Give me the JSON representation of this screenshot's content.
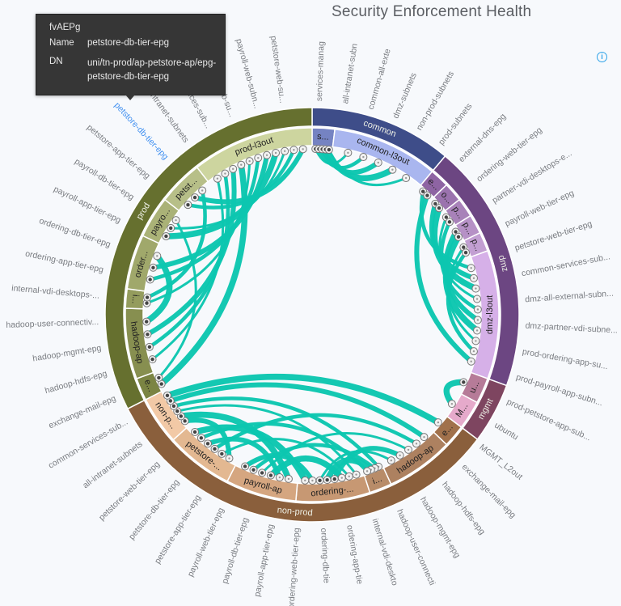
{
  "title": "Security Enforcement Health",
  "info_icon": "info-circle-icon",
  "tooltip": {
    "type": "fvAEPg",
    "name_label": "Name",
    "name_value": "petstore-db-tier-epg",
    "dn_label": "DN",
    "dn_value": "uni/tn-prod/ap-petstore-ap/epg-petstore-db-tier-epg"
  },
  "colors": {
    "chord": "#0cc6b0",
    "label": "#7a7d82",
    "highlight": "#3f8ff0"
  },
  "chart_data": {
    "type": "chord",
    "groups": [
      {
        "name": "common",
        "size": 40,
        "color": "#3e4d89"
      },
      {
        "name": "dmz",
        "size": 70,
        "color": "#6c4682"
      },
      {
        "name": "mgmt",
        "size": 17,
        "color": "#7e4560"
      },
      {
        "name": "non-prod",
        "size": 116,
        "color": "#8a5f3c"
      },
      {
        "name": "prod",
        "size": 117,
        "color": "#66702f"
      }
    ],
    "segments": [
      {
        "id": "c-s",
        "label": "s...",
        "size": 7,
        "color": "#7583c2"
      },
      {
        "id": "c-l3",
        "label": "common-l3out",
        "size": 33,
        "color": "#a9b6ef"
      },
      {
        "id": "d-e",
        "label": "e...",
        "size": 6,
        "color": "#8e64a3"
      },
      {
        "id": "d-o",
        "label": "o...",
        "size": 6,
        "color": "#9b73ae"
      },
      {
        "id": "d-p1",
        "label": "p...",
        "size": 6,
        "color": "#a882b9"
      },
      {
        "id": "d-p2",
        "label": "p...",
        "size": 6,
        "color": "#b691c6"
      },
      {
        "id": "d-p3",
        "label": "p...",
        "size": 6,
        "color": "#c29fd2"
      },
      {
        "id": "d-l3",
        "label": "dmz-l3out",
        "size": 40,
        "color": "#d6b0e8"
      },
      {
        "id": "m-u",
        "label": "u...",
        "size": 8,
        "color": "#b67b98"
      },
      {
        "id": "m-M",
        "label": "M...",
        "size": 9,
        "color": "#e6aacb"
      },
      {
        "id": "n-e",
        "label": "e...",
        "size": 7,
        "color": "#a1714b"
      },
      {
        "id": "n-h",
        "label": "hadoop-ap",
        "size": 21,
        "color": "#ad8160"
      },
      {
        "id": "n-i",
        "label": "i...",
        "size": 7,
        "color": "#b88c69"
      },
      {
        "id": "n-o",
        "label": "ordering-...",
        "size": 23,
        "color": "#c79873"
      },
      {
        "id": "n-pa",
        "label": "payroll-ap",
        "size": 22,
        "color": "#d5a680"
      },
      {
        "id": "n-pe",
        "label": "petstore-...",
        "size": 21,
        "color": "#e3b891"
      },
      {
        "id": "n-np",
        "label": "non-p...",
        "size": 15,
        "color": "#f2c9a6"
      },
      {
        "id": "p-e",
        "label": "e...",
        "size": 7,
        "color": "#7b8443"
      },
      {
        "id": "p-h",
        "label": "hadoop-ap",
        "size": 22,
        "color": "#878f50"
      },
      {
        "id": "p-i",
        "label": "i...",
        "size": 6,
        "color": "#949c5d"
      },
      {
        "id": "p-o",
        "label": "order...",
        "size": 17,
        "color": "#a0a86b"
      },
      {
        "id": "p-pa",
        "label": "payro...",
        "size": 13,
        "color": "#aab277"
      },
      {
        "id": "p-pe",
        "label": "petst...",
        "size": 14,
        "color": "#b7bf88"
      },
      {
        "id": "p-l3",
        "label": "prod-l3out",
        "size": 38,
        "color": "#cdd59f"
      }
    ],
    "labels": [
      "services-manag",
      "all-intranet-subn",
      "common-all-exte",
      "dmz-subnets",
      "non-prod-subnets",
      "prod-subnets",
      "external-dns-epg",
      "ordering-web-tier-epg",
      "partner-vdi-desktops-e...",
      "payroll-web-tier-epg",
      "petstore-web-tier-epg",
      "common-services-sub...",
      "dmz-all-external-subn...",
      "dmz-partner-vdi-subne...",
      "prod-ordering-app-su...",
      "prod-payroll-app-subn...",
      "prod-petstore-app-sub...",
      "ubuntu",
      "MGMT_L2out",
      "exchange-mail-epg",
      "hadoop-hdfs-epg",
      "hadoop-mgmt-epg",
      "hadoop-user-connecti",
      "internal-vdi-deskto",
      "ordering-app-tie",
      "ordering-db-tie",
      "ordering-web-tier-epg",
      "payroll-app-tier-epg",
      "payroll-db-tier-epg",
      "payroll-web-tier-epg",
      "petstore-app-tier-epg",
      "petstore-db-tier-epg",
      "petstore-web-tier-epg",
      "all-intranet-subnets",
      "common-services-sub...",
      "exchange-mail-epg",
      "hadoop-hdfs-epg",
      "hadoop-mgmt-epg",
      "hadoop-user-connectiv...",
      "internal-vdi-desktops-...",
      "ordering-app-tier-epg",
      "ordering-db-tier-epg",
      "payroll-app-tier-epg",
      "payroll-db-tier-epg",
      "petstore-app-tier-epg",
      "petstore-db-tier-epg",
      "all-intranet-subnets",
      "services-sub...",
      "ordering-web-su...",
      "payroll-web-subn...",
      "petstore-web-su..."
    ],
    "highlighted_label": 45,
    "links": [
      [
        "c-s",
        "c-l3"
      ],
      [
        "c-s",
        "c-l3"
      ],
      [
        "c-s",
        "c-l3"
      ],
      [
        "c-s",
        "c-l3"
      ],
      [
        "c-s",
        "c-l3"
      ],
      [
        "d-e",
        "d-l3"
      ],
      [
        "d-o",
        "d-l3"
      ],
      [
        "d-o",
        "d-l3"
      ],
      [
        "d-p1",
        "d-l3"
      ],
      [
        "d-p1",
        "d-l3"
      ],
      [
        "d-p2",
        "d-l3"
      ],
      [
        "d-p2",
        "d-l3"
      ],
      [
        "d-p3",
        "d-l3"
      ],
      [
        "d-p3",
        "d-l3"
      ],
      [
        "d-e",
        "d-l3"
      ],
      [
        "m-u",
        "m-M"
      ],
      [
        "p-h",
        "p-l3"
      ],
      [
        "p-h",
        "p-l3"
      ],
      [
        "p-h",
        "p-l3"
      ],
      [
        "p-e",
        "p-l3"
      ],
      [
        "p-i",
        "p-l3"
      ],
      [
        "p-o",
        "p-l3"
      ],
      [
        "p-o",
        "p-l3"
      ],
      [
        "p-pa",
        "p-l3"
      ],
      [
        "p-pa",
        "p-l3"
      ],
      [
        "p-pe",
        "p-l3"
      ],
      [
        "p-pe",
        "p-l3"
      ],
      [
        "p-h",
        "p-o"
      ],
      [
        "p-e",
        "p-pa"
      ],
      [
        "p-i",
        "p-pe"
      ],
      [
        "n-np",
        "n-pe"
      ],
      [
        "n-np",
        "n-pa"
      ],
      [
        "n-np",
        "n-o"
      ],
      [
        "n-np",
        "n-i"
      ],
      [
        "n-np",
        "n-h"
      ],
      [
        "n-np",
        "n-e"
      ],
      [
        "n-pe",
        "n-o"
      ],
      [
        "n-pe",
        "n-h"
      ],
      [
        "n-pe",
        "n-pa"
      ],
      [
        "n-pa",
        "n-o"
      ],
      [
        "n-pa",
        "n-h"
      ],
      [
        "n-pa",
        "n-i"
      ],
      [
        "n-o",
        "n-h"
      ],
      [
        "n-o",
        "n-i"
      ],
      [
        "n-o",
        "n-h"
      ],
      [
        "n-pe",
        "n-i"
      ],
      [
        "n-pa",
        "n-o"
      ],
      [
        "n-pe",
        "n-o"
      ]
    ]
  }
}
